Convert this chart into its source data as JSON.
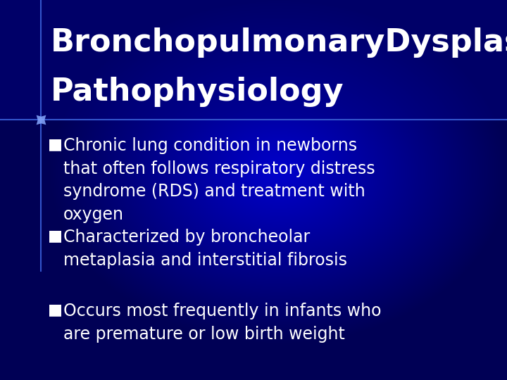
{
  "bg_color_main": "#0000CC",
  "bg_color_dark": "#000066",
  "title_line1": "BronchopulmonaryDysplasia",
  "title_line2": "Pathophysiology",
  "title_color": "#FFFFFF",
  "title_fontsize": 32,
  "bullet_color": "#FFFFFF",
  "bullet_marker": "■",
  "bullet_fontsize": 17,
  "line_color": "#3355CC",
  "star_color": "#88AAFF",
  "bullets": [
    "Chronic lung condition in newborns\nthat often follows respiratory distress\nsyndrome (RDS) and treatment with\noxygen",
    "Characterized by broncheolar\nmetaplasia and interstitial fibrosis",
    "Occurs most frequently in infants who\nare premature or low birth weight"
  ],
  "figsize": [
    7.2,
    5.4
  ],
  "dpi": 100
}
